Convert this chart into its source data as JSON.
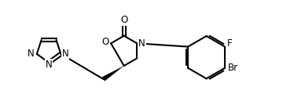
{
  "bg_color": "#ffffff",
  "line_color": "#000000",
  "line_width": 1.5,
  "font_size": 8.5,
  "fig_width": 3.74,
  "fig_height": 1.34,
  "dpi": 100,
  "xlim": [
    -0.3,
    10.5
  ],
  "ylim": [
    -1.5,
    2.8
  ]
}
